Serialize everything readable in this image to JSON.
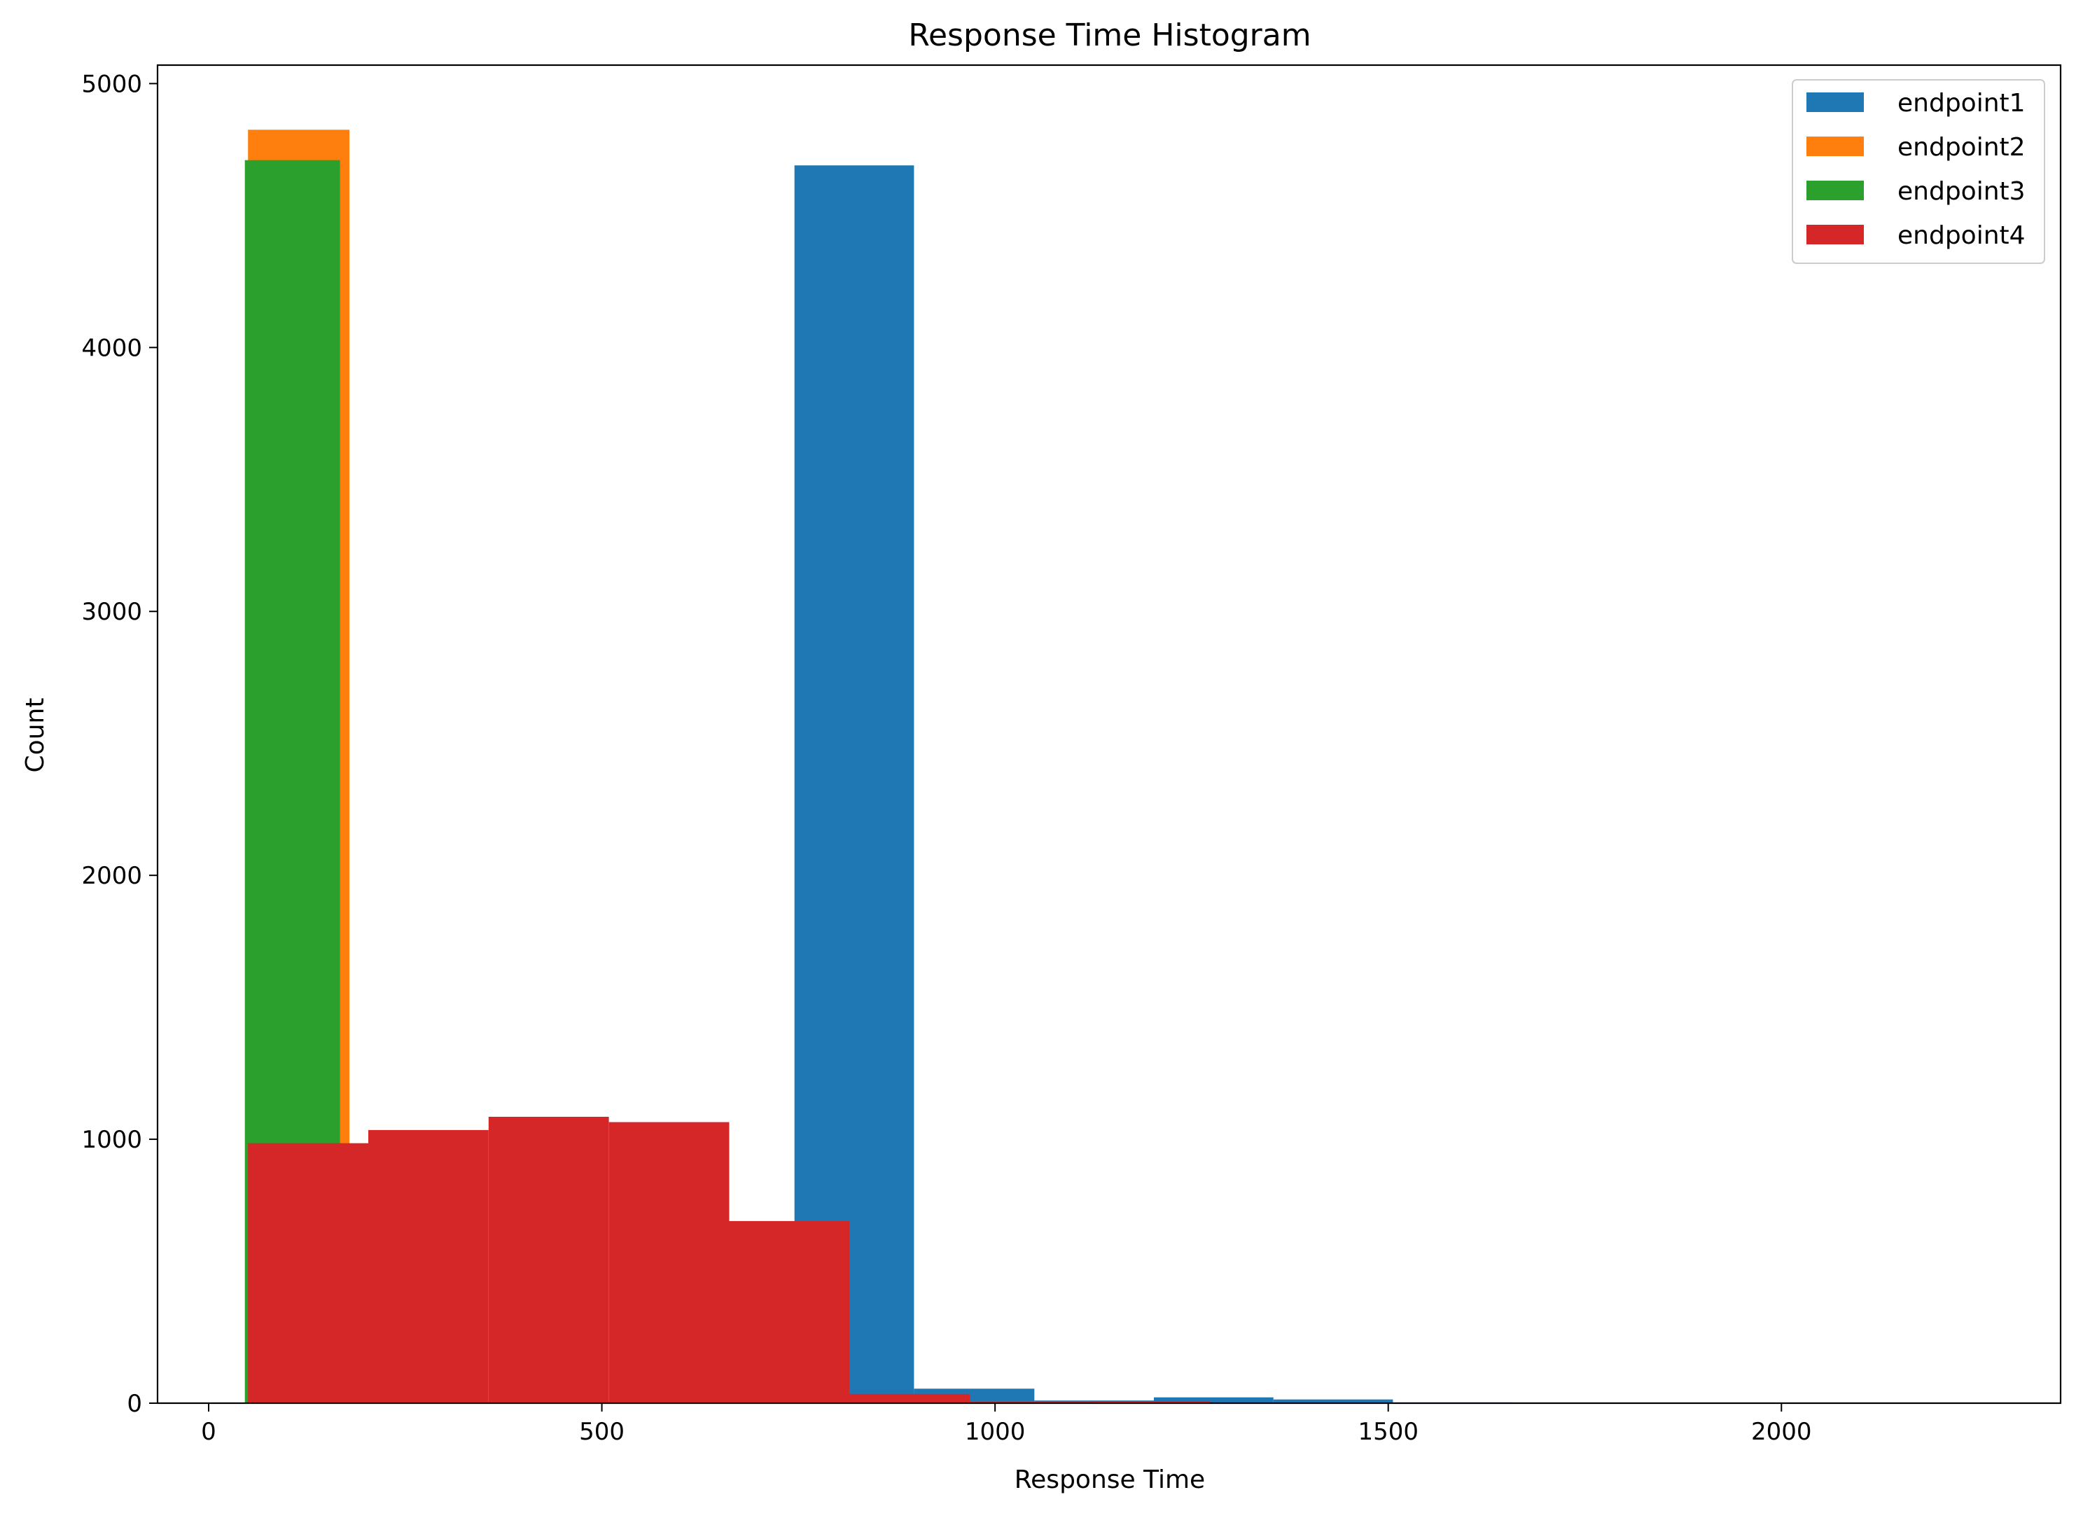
{
  "chart_data": {
    "type": "bar",
    "title": "Response Time Histogram",
    "xlabel": "Response Time",
    "ylabel": "Count",
    "xlim": [
      -65,
      2355
    ],
    "ylim": [
      0,
      5070
    ],
    "xticks": [
      0,
      500,
      1000,
      1500,
      2000
    ],
    "yticks": [
      0,
      1000,
      2000,
      3000,
      4000,
      5000
    ],
    "grid": false,
    "legend_position": "top-right",
    "series": [
      {
        "name": "endpoint1",
        "color": "#1f77b4",
        "bins": [
          {
            "x0": 47,
            "x1": 200,
            "count": 2
          },
          {
            "x0": 200,
            "x1": 353,
            "count": 3
          },
          {
            "x0": 353,
            "x1": 506,
            "count": 4
          },
          {
            "x0": 506,
            "x1": 659,
            "count": 5
          },
          {
            "x0": 659,
            "x1": 745,
            "count": 6
          },
          {
            "x0": 745,
            "x1": 897,
            "count": 4690
          },
          {
            "x0": 897,
            "x1": 1050,
            "count": 55
          },
          {
            "x0": 1050,
            "x1": 1202,
            "count": 10
          },
          {
            "x0": 1202,
            "x1": 1354,
            "count": 22
          },
          {
            "x0": 1354,
            "x1": 1506,
            "count": 14
          },
          {
            "x0": 1506,
            "x1": 1658,
            "count": 3
          }
        ]
      },
      {
        "name": "endpoint2",
        "color": "#ff7f0e",
        "bins": [
          {
            "x0": 50,
            "x1": 179,
            "count": 4825
          }
        ]
      },
      {
        "name": "endpoint3",
        "color": "#2ca02c",
        "bins": [
          {
            "x0": 46,
            "x1": 167,
            "count": 4710
          }
        ]
      },
      {
        "name": "endpoint4",
        "color": "#d62728",
        "bins": [
          {
            "x0": 50,
            "x1": 203,
            "count": 985
          },
          {
            "x0": 203,
            "x1": 356,
            "count": 1035
          },
          {
            "x0": 356,
            "x1": 509,
            "count": 1085
          },
          {
            "x0": 509,
            "x1": 662,
            "count": 1065
          },
          {
            "x0": 662,
            "x1": 815,
            "count": 690
          },
          {
            "x0": 815,
            "x1": 968,
            "count": 35
          },
          {
            "x0": 968,
            "x1": 1121,
            "count": 5
          },
          {
            "x0": 1121,
            "x1": 1274,
            "count": 8
          }
        ]
      }
    ]
  }
}
